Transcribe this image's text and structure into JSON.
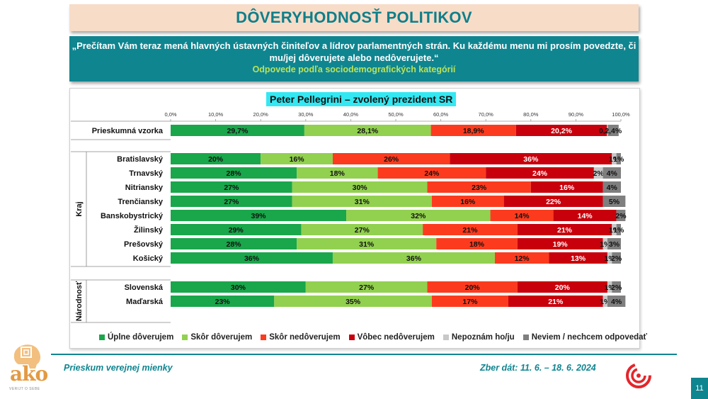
{
  "header": {
    "title": "DÔVERYHODNOSŤ POLITIKOV",
    "question": "„Prečítam Vám teraz mená hlavných ústavných činiteľov a lídrov parlamentných strán. Ku každému menu mi prosím povedzte, či mu/jej dôverujete alebo nedôverujete.“",
    "subtitle": "Odpovede podľa sociodemografických kategórií"
  },
  "chart_data": {
    "type": "bar",
    "orientation": "horizontal-stacked-100",
    "title": "Peter Pellegrini – zvolený prezident SR",
    "xlim": [
      0,
      100
    ],
    "x_ticks": [
      "0,0%",
      "10,0%",
      "20,0%",
      "30,0%",
      "40,0%",
      "50,0%",
      "60,0%",
      "70,0%",
      "80,0%",
      "90,0%",
      "100,0%"
    ],
    "series": [
      {
        "name": "Úplne dôverujem",
        "color": "#1aa64b"
      },
      {
        "name": "Skôr dôverujem",
        "color": "#92d050"
      },
      {
        "name": "Skôr nedôverujem",
        "color": "#fc3b1e"
      },
      {
        "name": "Vôbec nedôverujem",
        "color": "#c8000c"
      },
      {
        "name": "Nepoznám ho/ju",
        "color": "#c8c8c8"
      },
      {
        "name": "Neviem / nechcem odpovedať",
        "color": "#7f7f7f"
      }
    ],
    "rows": [
      {
        "category": "Prieskumná vzorka",
        "group": "",
        "values": [
          29.7,
          28.1,
          18.9,
          20.2,
          0.2,
          2.4
        ],
        "labels": [
          "29,7%",
          "28,1%",
          "18,9%",
          "20,2%",
          "0,2%",
          "2,4%"
        ]
      },
      {
        "category": "Bratislavský",
        "group": "Kraj",
        "values": [
          20,
          16,
          26,
          36,
          1,
          1
        ],
        "labels": [
          "20%",
          "16%",
          "26%",
          "36%",
          "1%",
          "1%"
        ]
      },
      {
        "category": "Trnavský",
        "group": "Kraj",
        "values": [
          28,
          18,
          24,
          24,
          2,
          4
        ],
        "labels": [
          "28%",
          "18%",
          "24%",
          "24%",
          "2%",
          "4%"
        ]
      },
      {
        "category": "Nitriansky",
        "group": "Kraj",
        "values": [
          27,
          30,
          23,
          16,
          0,
          4
        ],
        "labels": [
          "27%",
          "30%",
          "23%",
          "16%",
          "",
          "4%"
        ]
      },
      {
        "category": "Trenčiansky",
        "group": "Kraj",
        "values": [
          27,
          31,
          16,
          22,
          0,
          5
        ],
        "labels": [
          "27%",
          "31%",
          "16%",
          "22%",
          "",
          "5%"
        ]
      },
      {
        "category": "Banskobystrický",
        "group": "Kraj",
        "values": [
          39,
          32,
          14,
          14,
          0,
          2
        ],
        "labels": [
          "39%",
          "32%",
          "14%",
          "14%",
          "",
          "2%"
        ]
      },
      {
        "category": "Žilinský",
        "group": "Kraj",
        "values": [
          29,
          27,
          21,
          21,
          1,
          1
        ],
        "labels": [
          "29%",
          "27%",
          "21%",
          "21%",
          "1%",
          "1%"
        ]
      },
      {
        "category": "Prešovský",
        "group": "Kraj",
        "values": [
          28,
          31,
          18,
          19,
          1,
          3
        ],
        "labels": [
          "28%",
          "31%",
          "18%",
          "19%",
          "1%",
          "3%"
        ]
      },
      {
        "category": "Košický",
        "group": "Kraj",
        "values": [
          36,
          36,
          12,
          13,
          1,
          2
        ],
        "labels": [
          "36%",
          "36%",
          "12%",
          "13%",
          "1%",
          "2%"
        ]
      },
      {
        "category": "Slovenská",
        "group": "Národnosť",
        "values": [
          30,
          27,
          20,
          20,
          1,
          2
        ],
        "labels": [
          "30%",
          "27%",
          "20%",
          "20%",
          "1%",
          "2%"
        ]
      },
      {
        "category": "Maďarská",
        "group": "Národnosť",
        "values": [
          23,
          35,
          17,
          21,
          1,
          4
        ],
        "labels": [
          "23%",
          "35%",
          "17%",
          "21%",
          "1%",
          "4%"
        ]
      }
    ],
    "groups": [
      "Kraj",
      "Národnosť"
    ]
  },
  "footer": {
    "left": "Prieskum verejnej mienky",
    "right": "Zber dát: 11. 6. – 18. 6. 2024",
    "page": "11",
    "logo_text": "ako",
    "logo_sub": "VERIJT O SEBE"
  },
  "colors": {
    "teal": "#0f8590",
    "title_bg": "#f7dcc8",
    "chart_title_bg": "#33e8f2"
  }
}
